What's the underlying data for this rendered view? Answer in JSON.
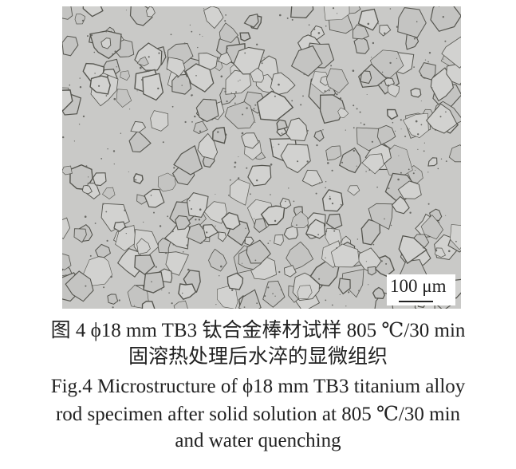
{
  "figure": {
    "image_description_alt": "",
    "scale_bar": "100 μm",
    "caption_cn_line1": "图 4  ϕ18 mm TB3 钛合金棒材试样 805 ℃/30 min",
    "caption_cn_line2": "固溶热处理后水淬的显微组织",
    "caption_en_line1": "Fig.4  Microstructure of ϕ18 mm TB3 titanium alloy",
    "caption_en_line2": "rod specimen after solid solution at 805 ℃/30 min",
    "caption_en_line3": "and water quenching"
  }
}
